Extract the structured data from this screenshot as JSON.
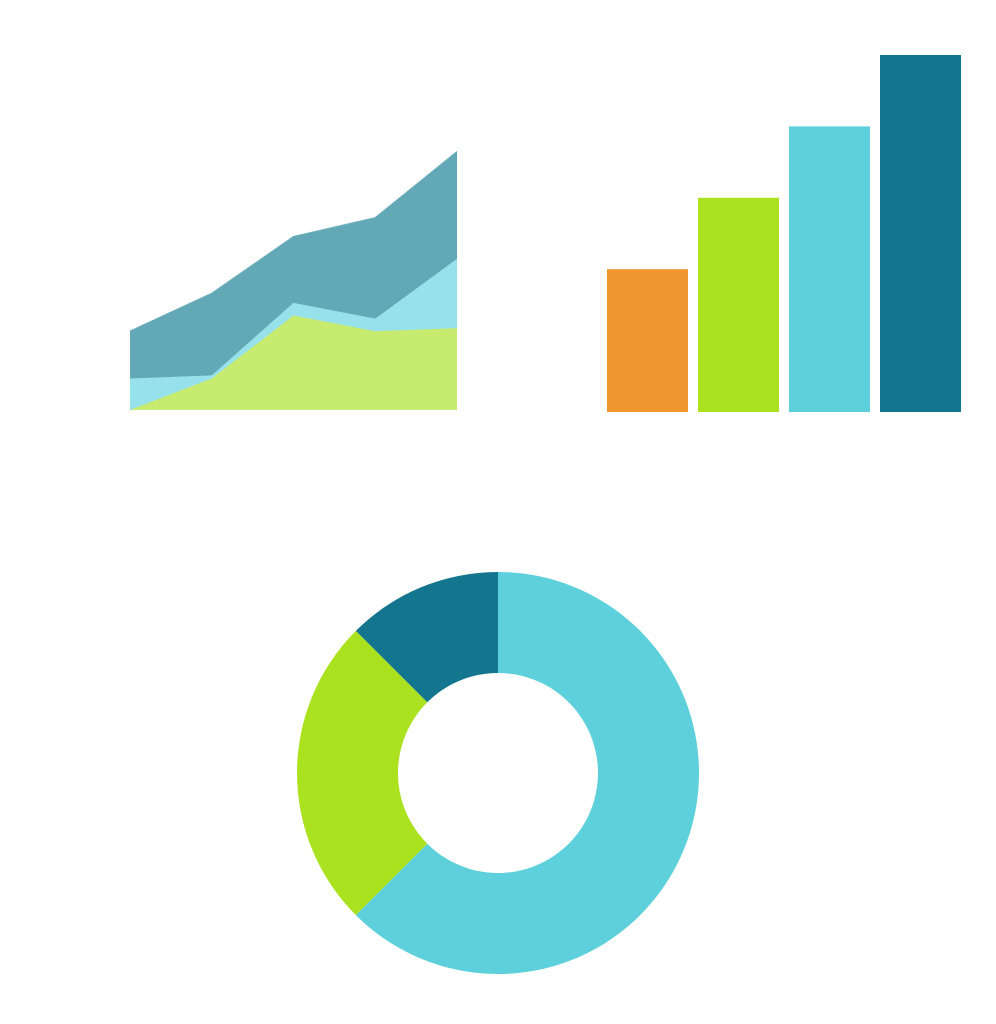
{
  "colors": {
    "orange": "#F0962F",
    "lime": "#ABE220",
    "cyan": "#5ED0DB",
    "teal": "#13758E",
    "area_dark": "#63A8B7",
    "area_light": "#96E1EA",
    "area_green": "#C7EB6F",
    "background": "#FFFFFF"
  },
  "chart_data": [
    {
      "type": "area",
      "stacked": true,
      "title": "",
      "xlabel": "",
      "ylabel": "",
      "grid": false,
      "legend": "none",
      "x": [
        1,
        2,
        3,
        4,
        5
      ],
      "ylim": [
        0,
        100
      ],
      "series": [
        {
          "values": [
            0,
            10,
            30,
            25,
            26
          ],
          "color": "#C7EB6F"
        },
        {
          "values": [
            10,
            1,
            4,
            4,
            22
          ],
          "color": "#96E1EA"
        },
        {
          "values": [
            15,
            26,
            21,
            32,
            34
          ],
          "color": "#63A8B7"
        }
      ]
    },
    {
      "type": "bar",
      "title": "",
      "xlabel": "",
      "ylabel": "",
      "grid": false,
      "legend": "none",
      "ylim": [
        0,
        100
      ],
      "values": [
        40,
        60,
        80,
        100
      ],
      "colors": [
        "#F0962F",
        "#ABE220",
        "#5ED0DB",
        "#13758E"
      ]
    },
    {
      "type": "pie",
      "donut": true,
      "title": "",
      "legend": "none",
      "values": [
        62.5,
        25,
        12.5
      ],
      "colors": [
        "#5ED0DB",
        "#ABE220",
        "#13758E"
      ]
    }
  ]
}
